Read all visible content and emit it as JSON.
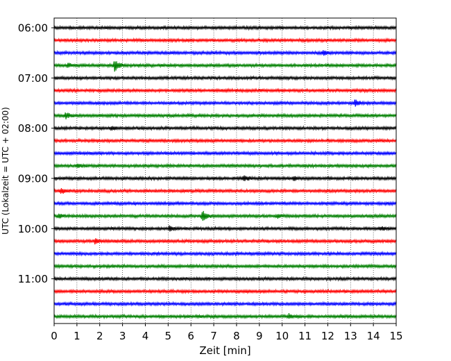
{
  "chart_data": {
    "type": "line",
    "title": "",
    "xlabel": "Zeit  [min]",
    "ylabel": "UTC (Lokalzeit = UTC + 02:00)",
    "xlim": [
      0,
      15
    ],
    "x_ticks": [
      "0",
      "1",
      "2",
      "3",
      "4",
      "5",
      "6",
      "7",
      "8",
      "9",
      "10",
      "11",
      "12",
      "13",
      "14",
      "15"
    ],
    "x_grid": "dotted vertical lines at each minute",
    "y_tick_labels": [
      "06:00",
      "07:00",
      "08:00",
      "09:00",
      "10:00",
      "11:00"
    ],
    "trace_interval_minutes": 15,
    "trace_color_cycle": [
      "#000000",
      "#ff0000",
      "#0000ff",
      "#008000"
    ],
    "series": [
      {
        "start": "06:00",
        "color": "#000000",
        "events": []
      },
      {
        "start": "06:15",
        "color": "#ff0000",
        "events": []
      },
      {
        "start": "06:30",
        "color": "#0000ff",
        "events": [
          {
            "t": 11.8,
            "amp": 0.35
          }
        ]
      },
      {
        "start": "06:45",
        "color": "#008000",
        "events": [
          {
            "t": 2.65,
            "amp": 1.0
          },
          {
            "t": 0.6,
            "amp": 0.35
          }
        ]
      },
      {
        "start": "07:00",
        "color": "#000000",
        "events": []
      },
      {
        "start": "07:15",
        "color": "#ff0000",
        "events": []
      },
      {
        "start": "07:30",
        "color": "#0000ff",
        "events": [
          {
            "t": 13.2,
            "amp": 0.55
          }
        ]
      },
      {
        "start": "07:45",
        "color": "#008000",
        "events": [
          {
            "t": 0.5,
            "amp": 0.5
          }
        ]
      },
      {
        "start": "08:00",
        "color": "#000000",
        "events": [
          {
            "t": 2.5,
            "amp": 0.3
          }
        ]
      },
      {
        "start": "08:15",
        "color": "#ff0000",
        "events": []
      },
      {
        "start": "08:30",
        "color": "#0000ff",
        "events": []
      },
      {
        "start": "08:45",
        "color": "#008000",
        "events": [
          {
            "t": 1.0,
            "amp": 0.3
          }
        ]
      },
      {
        "start": "09:00",
        "color": "#000000",
        "events": [
          {
            "t": 8.3,
            "amp": 0.45
          },
          {
            "t": 10.5,
            "amp": 0.35
          }
        ]
      },
      {
        "start": "09:15",
        "color": "#ff0000",
        "events": [
          {
            "t": 0.3,
            "amp": 0.4
          }
        ]
      },
      {
        "start": "09:30",
        "color": "#0000ff",
        "events": []
      },
      {
        "start": "09:45",
        "color": "#008000",
        "events": [
          {
            "t": 6.5,
            "amp": 0.95
          },
          {
            "t": 0.2,
            "amp": 0.4
          },
          {
            "t": 9.8,
            "amp": 0.3
          }
        ]
      },
      {
        "start": "10:00",
        "color": "#000000",
        "events": [
          {
            "t": 5.05,
            "amp": 0.55
          },
          {
            "t": 14.3,
            "amp": 0.3
          }
        ]
      },
      {
        "start": "10:15",
        "color": "#ff0000",
        "events": [
          {
            "t": 1.8,
            "amp": 0.4
          }
        ]
      },
      {
        "start": "10:30",
        "color": "#0000ff",
        "events": []
      },
      {
        "start": "10:45",
        "color": "#008000",
        "events": []
      },
      {
        "start": "11:00",
        "color": "#000000",
        "events": []
      },
      {
        "start": "11:15",
        "color": "#ff0000",
        "events": []
      },
      {
        "start": "11:30",
        "color": "#0000ff",
        "events": []
      },
      {
        "start": "11:45",
        "color": "#008000",
        "events": [
          {
            "t": 10.3,
            "amp": 0.35
          }
        ]
      }
    ]
  }
}
